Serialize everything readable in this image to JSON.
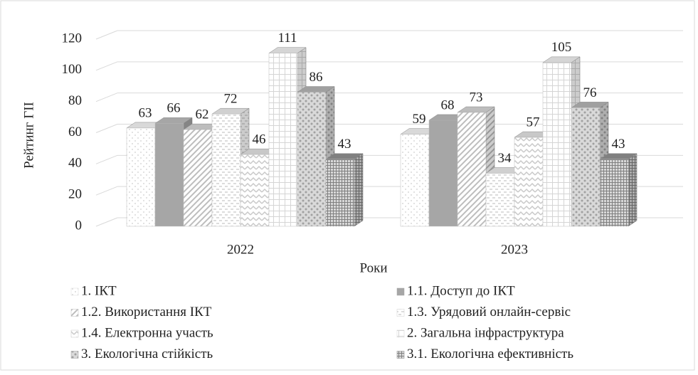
{
  "chart_data": {
    "type": "bar3d",
    "y_label": "Рейтинг ГІІ",
    "x_label": "Роки",
    "categories": [
      "2022",
      "2023"
    ],
    "series": [
      {
        "name": "1. ІКТ",
        "color": "#d9d9d9",
        "values": [
          63,
          59
        ]
      },
      {
        "name": "1.1. Доступ до ІКТ",
        "color": "#a6a6a6",
        "values": [
          66,
          68
        ]
      },
      {
        "name": "1.2. Використання ІКТ",
        "color": "#bdbdbd",
        "values": [
          62,
          73
        ]
      },
      {
        "name": "1.3. Урядовий онлайн-сервіс",
        "color": "#d0d0d0",
        "values": [
          72,
          34
        ]
      },
      {
        "name": "1.4. Електронна участь",
        "color": "#c8c8c8",
        "values": [
          46,
          57
        ]
      },
      {
        "name": "2. Загальна інфраструктура",
        "color": "#d5d5d5",
        "values": [
          111,
          105
        ]
      },
      {
        "name": "3. Екологічна стійкість",
        "color": "#a0a0a0",
        "values": [
          86,
          76
        ]
      },
      {
        "name": "3.1. Екологічна ефективність",
        "color": "#808080",
        "values": [
          43,
          43
        ]
      }
    ],
    "ylim": [
      0,
      120
    ],
    "yticks": [
      0,
      20,
      40,
      60,
      80,
      100,
      120
    ],
    "grid": true
  }
}
